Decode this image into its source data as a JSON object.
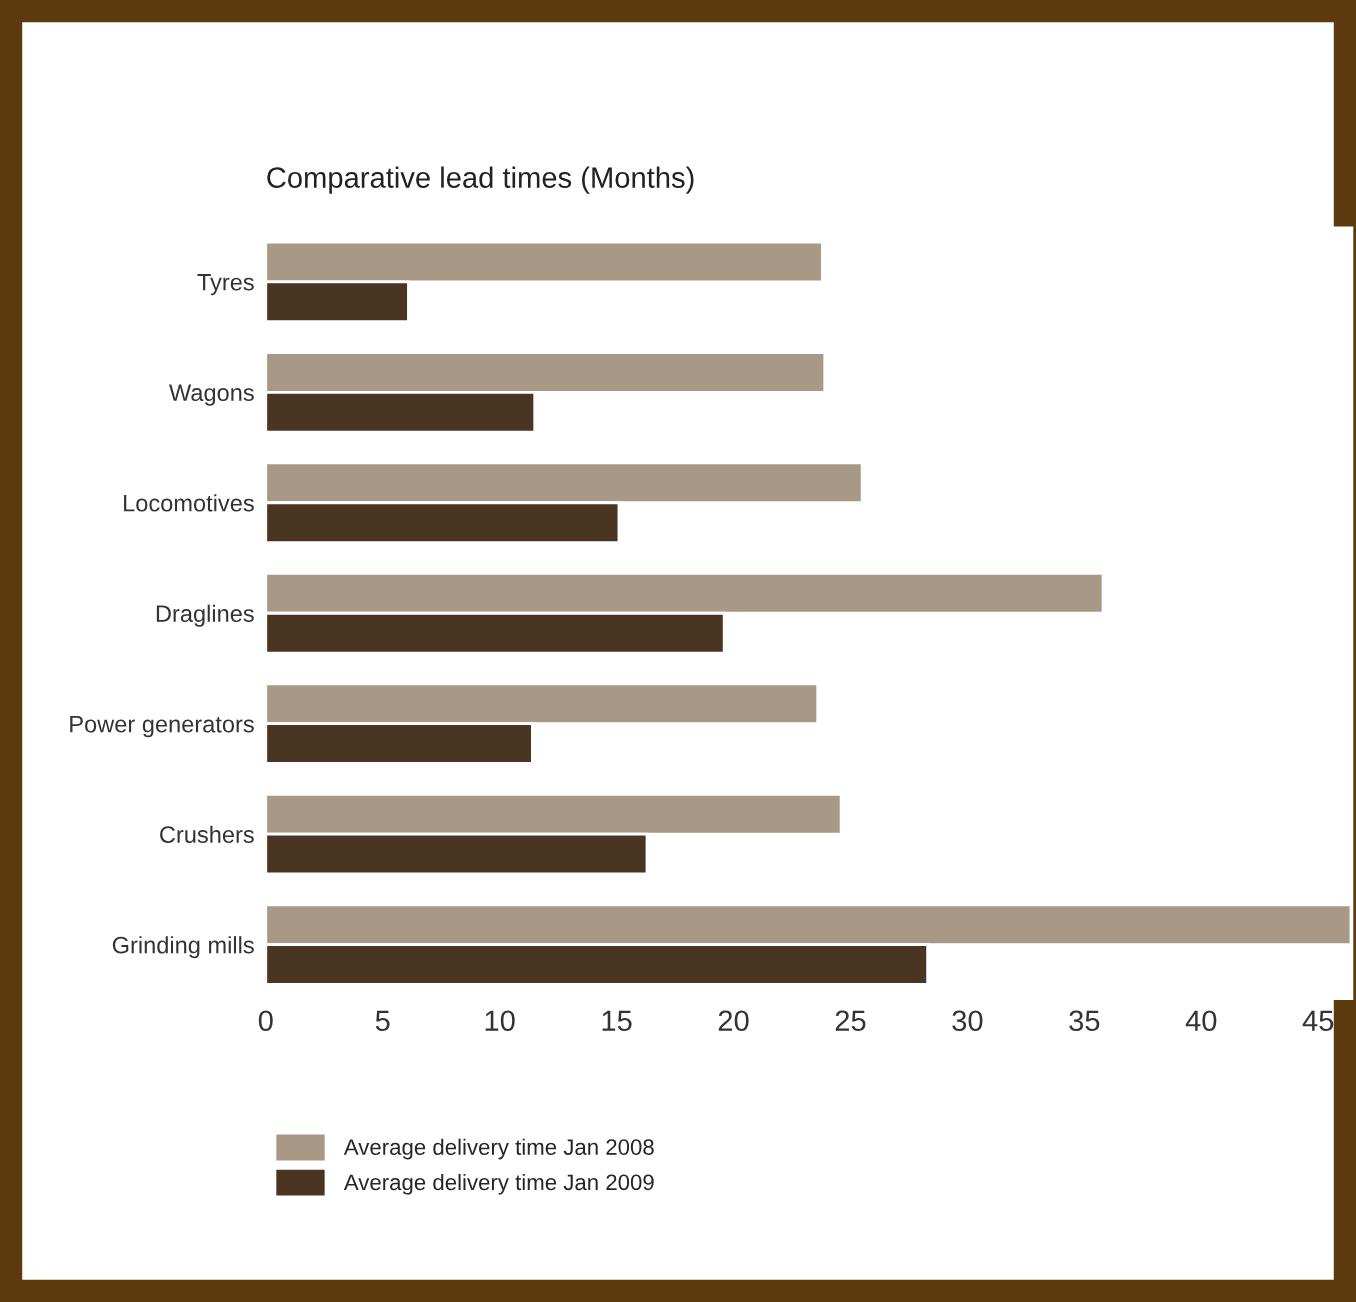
{
  "chart_data": {
    "type": "bar",
    "orientation": "horizontal",
    "title": "Comparative lead times (Months)",
    "categories": [
      "Tyres",
      "Wagons",
      "Locomotives",
      "Draglines",
      "Power generators",
      "Crushers",
      "Grinding mills"
    ],
    "series": [
      {
        "name": "Average delivery time Jan 2008",
        "color": "#a89886",
        "values": [
          23.8,
          23.9,
          25.5,
          35.8,
          23.6,
          24.6,
          46.4
        ]
      },
      {
        "name": "Average delivery time Jan 2009",
        "color": "#4a3422",
        "values": [
          6.1,
          11.5,
          15.1,
          19.6,
          11.4,
          16.3,
          28.3
        ]
      }
    ],
    "xlim": [
      0,
      46.5
    ],
    "xticks": [
      0,
      5,
      10,
      15,
      20,
      25,
      30,
      35,
      40,
      45
    ],
    "grid": false,
    "legend": "bottom"
  }
}
